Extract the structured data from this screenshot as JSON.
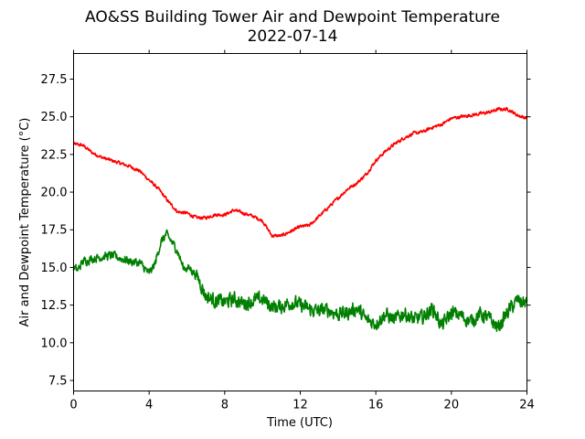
{
  "chart_data": {
    "type": "line",
    "title": "AO&SS Building Tower Air and Dewpoint Temperature",
    "subtitle": "2022-07-14",
    "xlabel": "Time (UTC)",
    "ylabel": "Air and Dewpoint Temperature (°C)",
    "xlim": [
      0,
      24
    ],
    "ylim": [
      6.8,
      29.2
    ],
    "xticks": [
      0,
      4,
      8,
      12,
      16,
      20,
      24
    ],
    "yticks": [
      7.5,
      10.0,
      12.5,
      15.0,
      17.5,
      20.0,
      22.5,
      25.0,
      27.5
    ],
    "grid": false,
    "legend": "none",
    "series": [
      {
        "color": "#ff0000",
        "noise": 0.15,
        "x": [
          0,
          0.5,
          1,
          1.5,
          2,
          2.5,
          3,
          3.5,
          4,
          4.5,
          5,
          5.5,
          6,
          6.5,
          7,
          7.5,
          8,
          8.5,
          9,
          9.5,
          10,
          10.5,
          11,
          11.5,
          12,
          12.5,
          13,
          13.5,
          14,
          14.5,
          15,
          15.5,
          16,
          16.5,
          17,
          17.5,
          18,
          18.5,
          19,
          19.5,
          20,
          20.5,
          21,
          21.5,
          22,
          22.5,
          23,
          23.5,
          24
        ],
        "y": [
          23.2,
          23.1,
          22.6,
          22.3,
          22.1,
          21.9,
          21.7,
          21.4,
          20.8,
          20.2,
          19.4,
          18.7,
          18.6,
          18.3,
          18.3,
          18.5,
          18.5,
          18.8,
          18.6,
          18.4,
          18.1,
          17.1,
          17.1,
          17.4,
          17.7,
          17.8,
          18.4,
          19.0,
          19.6,
          20.2,
          20.6,
          21.2,
          22.1,
          22.7,
          23.2,
          23.6,
          23.9,
          24.0,
          24.3,
          24.5,
          24.9,
          25.0,
          25.1,
          25.2,
          25.3,
          25.5,
          25.5,
          25.1,
          24.9
        ]
      },
      {
        "color": "#008000",
        "noise": 0.4,
        "x": [
          0,
          0.2,
          0.5,
          1,
          1.5,
          2,
          2.5,
          3,
          3.5,
          4,
          4.3,
          4.6,
          4.9,
          5.2,
          5.5,
          5.8,
          6.2,
          6.6,
          7,
          7.5,
          8,
          8.5,
          9,
          9.5,
          10,
          10.5,
          11,
          11.5,
          12,
          12.5,
          13,
          13.5,
          14,
          14.5,
          15,
          15.5,
          16,
          16.5,
          17,
          17.5,
          18,
          18.5,
          19,
          19.5,
          20,
          20.5,
          21,
          21.5,
          22,
          22.5,
          23,
          23.5,
          24
        ],
        "y": [
          15.0,
          14.8,
          15.4,
          15.6,
          15.7,
          15.8,
          15.6,
          15.4,
          15.3,
          14.6,
          15.2,
          16.6,
          17.2,
          16.7,
          16.1,
          15.0,
          14.9,
          14.3,
          13.1,
          12.8,
          12.7,
          12.9,
          12.6,
          12.8,
          12.9,
          12.4,
          12.4,
          12.7,
          12.5,
          12.2,
          12.1,
          12.2,
          11.9,
          12.0,
          12.3,
          11.5,
          11.3,
          11.9,
          11.5,
          12.0,
          11.5,
          11.7,
          12.3,
          11.1,
          12.0,
          11.8,
          11.4,
          11.9,
          11.6,
          11.0,
          12.1,
          12.8,
          12.6
        ]
      }
    ]
  }
}
